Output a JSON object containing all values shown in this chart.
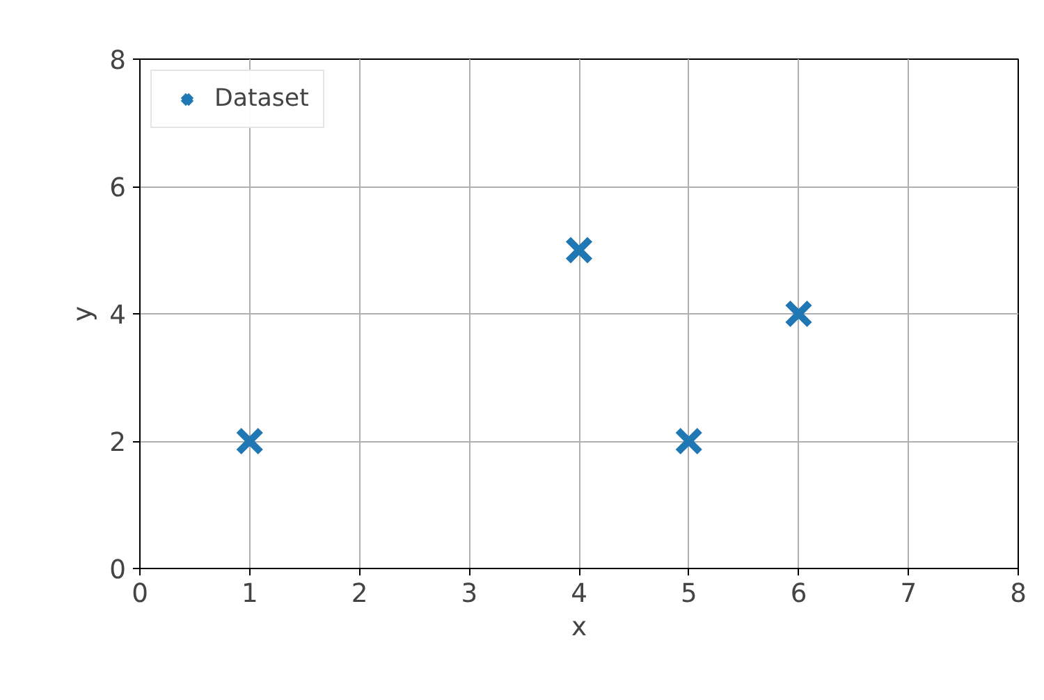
{
  "chart_data": {
    "type": "scatter",
    "xlabel": "x",
    "ylabel": "y",
    "series": [
      {
        "name": "Dataset",
        "color": "#1f77b4",
        "x": [
          1,
          4,
          5,
          6
        ],
        "values": [
          2,
          5,
          2,
          4
        ]
      }
    ],
    "xlim": [
      0,
      8
    ],
    "ylim": [
      0,
      8
    ],
    "xticks": [
      0,
      1,
      2,
      3,
      4,
      5,
      6,
      7,
      8
    ],
    "yticks": [
      0,
      2,
      4,
      6,
      8
    ],
    "grid": true,
    "legend": "top left",
    "marker": "cross"
  }
}
